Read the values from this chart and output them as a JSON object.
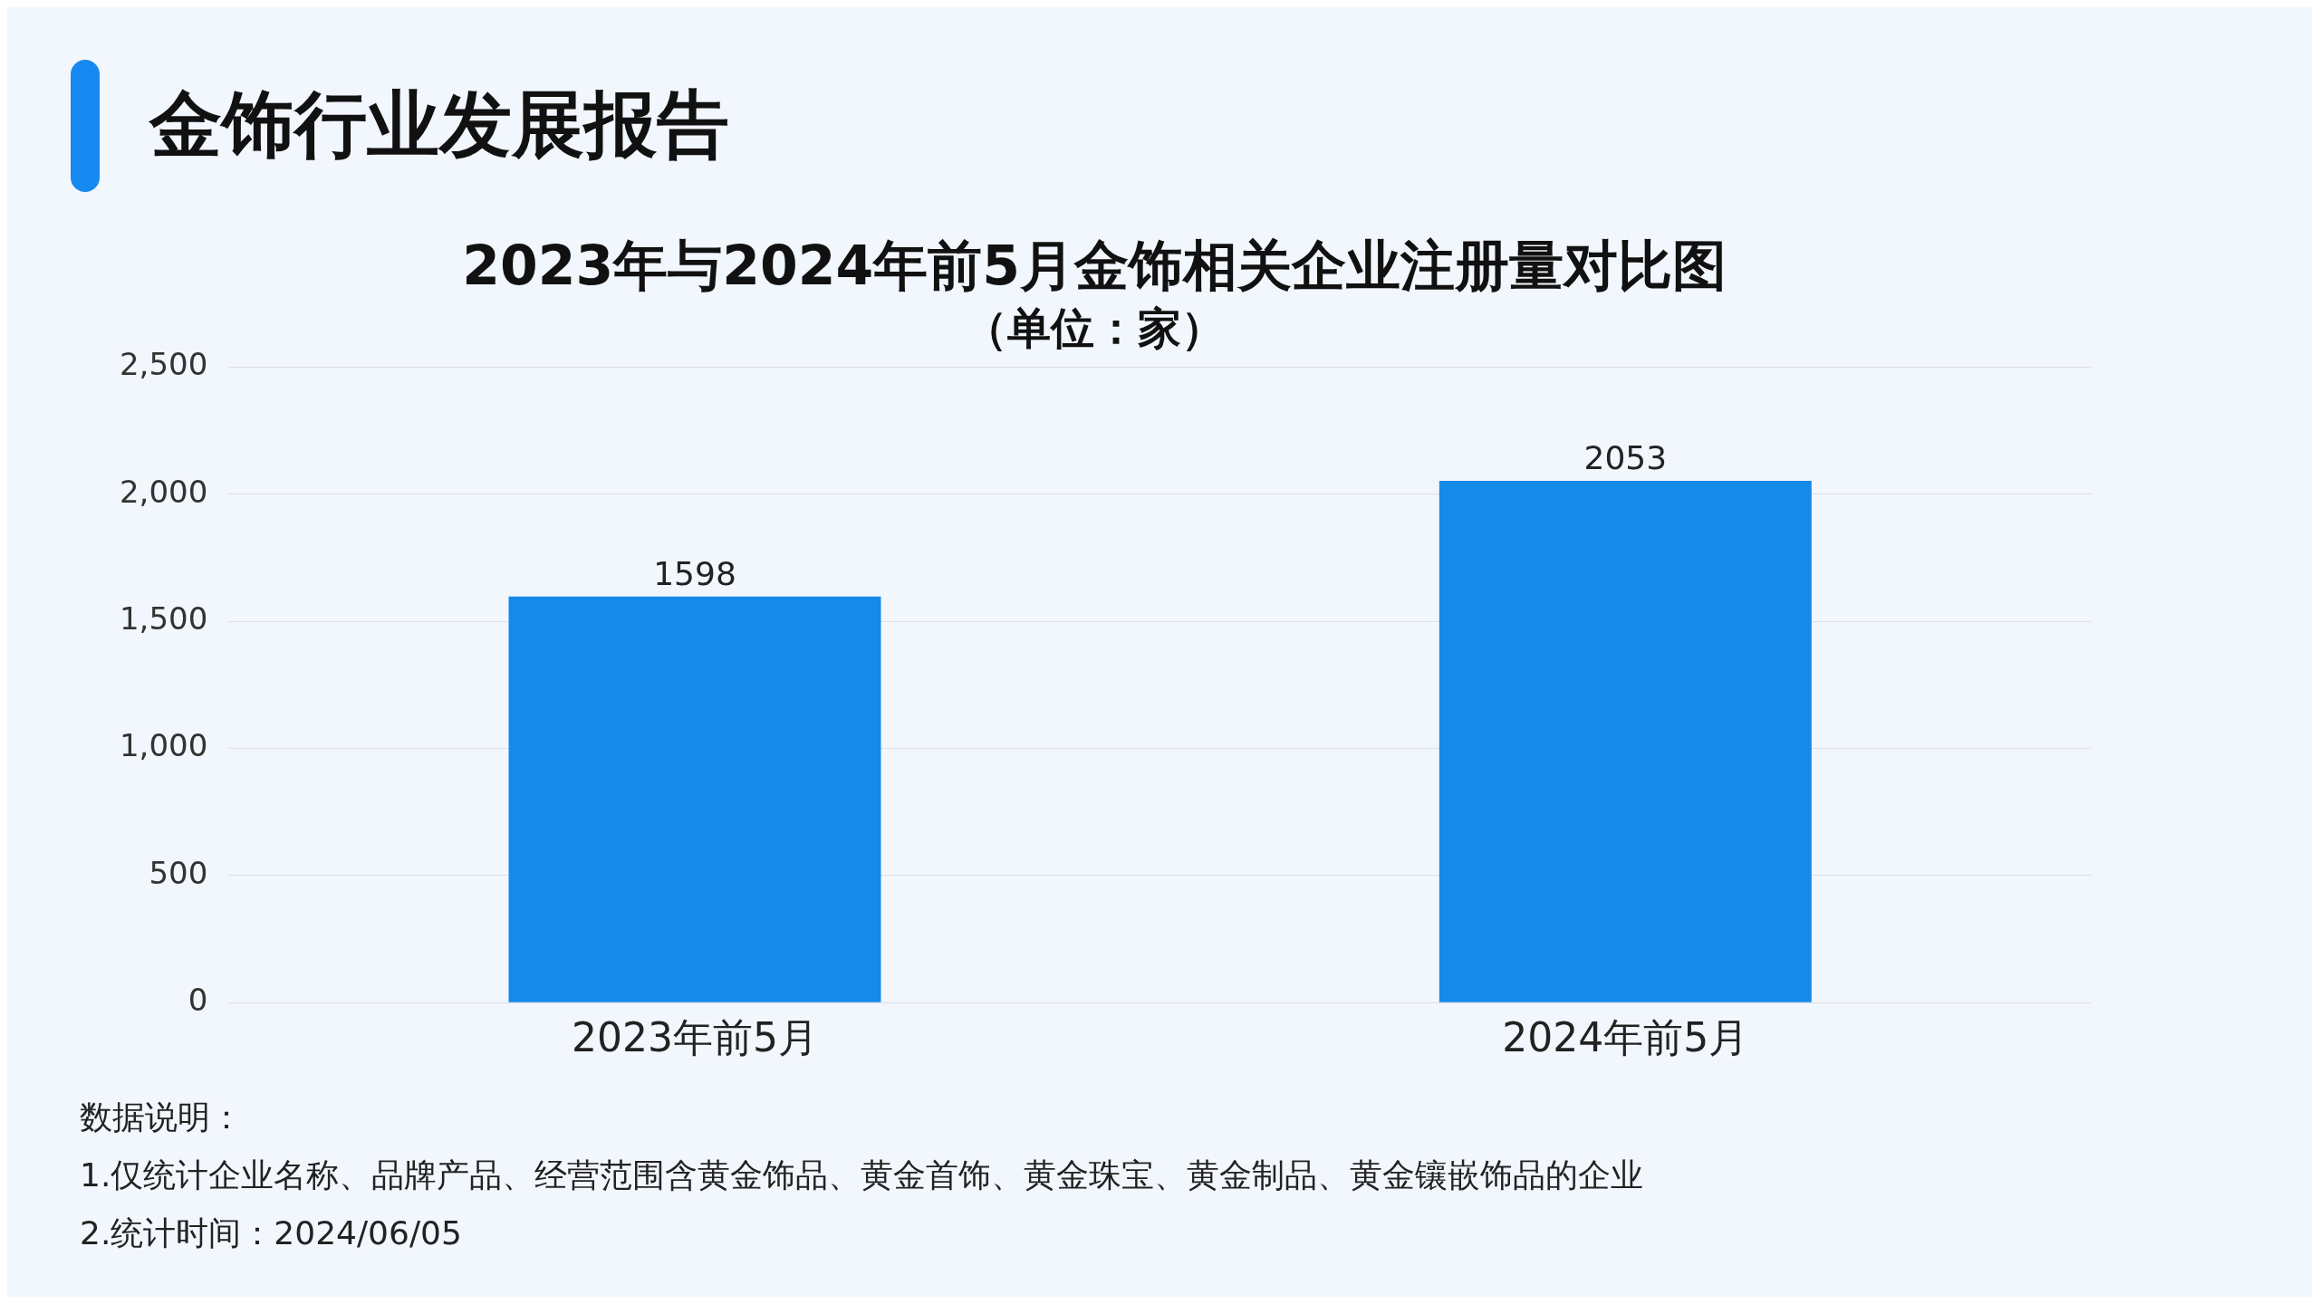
{
  "chart_data": {
    "type": "bar",
    "title": "2023年与2024年前5月金饰相关企业注册量对比图",
    "subtitle": "（单位：家）",
    "categories": [
      "2023年前5月",
      "2024年前5月"
    ],
    "values": [
      1598,
      2053
    ],
    "color": "#168ae9",
    "ylim": [
      0,
      2500
    ],
    "yticks": [
      0,
      {
        "value": 500,
        "label": "500"
      },
      {
        "value": 1000,
        "label": "1,000"
      },
      {
        "value": 1500,
        "label": "1,500"
      },
      {
        "value": 2000,
        "label": "2,000"
      },
      {
        "value": 2500,
        "label": "2,500"
      }
    ],
    "grid": "y",
    "data_labels": true,
    "annotations": [
      "金饰行业发展报告",
      "数据说明：",
      "1.仅统计企业名称、品牌产品、经营范围含黄金饰品、黄金首饰、黄金珠宝、黄金制品、黄金镶嵌饰品的企业",
      "2.统计时间：2024/06/05"
    ]
  }
}
